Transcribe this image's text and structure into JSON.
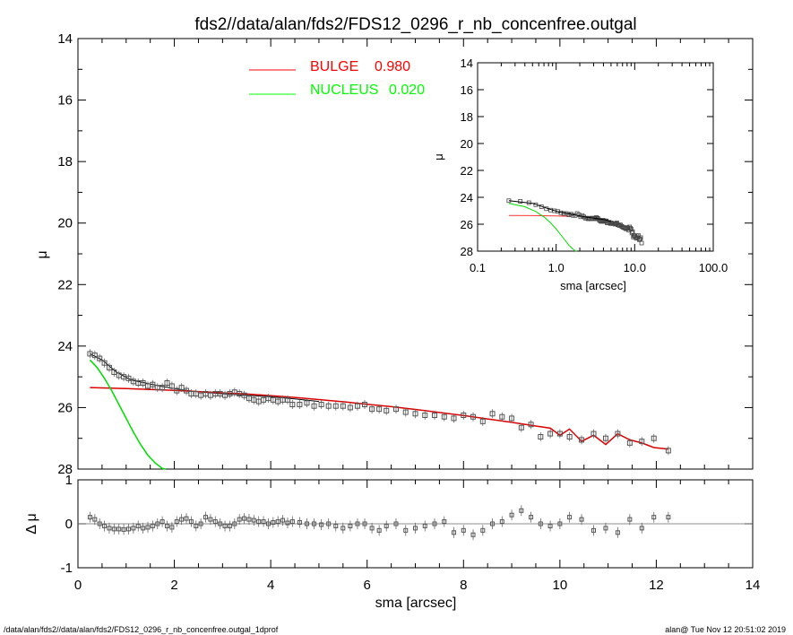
{
  "title": "fds2//data/alan/fds2/FDS12_0296_r_nb_concenfree.outgal",
  "footer_left": "/data/alan/fds2//data/alan/fds2/FDS12_0296_r_nb_concenfree.outgal_1dprof",
  "footer_right": "alan@  Tue Nov 12 20:51:02 2019",
  "colors": {
    "bulge": "#ff0000",
    "nucleus": "#00ff00",
    "bulge_model": "#dd0000",
    "nucleus_model": "#00dd00",
    "axes": "#000000",
    "points": "#555555"
  },
  "chart_data": [
    {
      "id": "main",
      "type": "scatter",
      "title": "fds2//data/alan/fds2/FDS12_0296_r_nb_concenfree.outgal",
      "xlabel": "sma [arcsec]",
      "ylabel": "μ",
      "xlim": [
        0,
        14
      ],
      "ylim": [
        28,
        14
      ],
      "y_inverted": true,
      "xticks": [
        0,
        2,
        4,
        6,
        8,
        10,
        12,
        14
      ],
      "yticks": [
        14,
        16,
        18,
        20,
        22,
        24,
        26,
        28
      ],
      "legend": {
        "placement": "top",
        "entries": [
          {
            "label": "BULGE",
            "value": "0.980",
            "color": "#ff0000"
          },
          {
            "label": "NUCLEUS",
            "value": "0.020",
            "color": "#00ff00"
          }
        ]
      },
      "data_points": {
        "x": [
          0.25,
          0.35,
          0.45,
          0.55,
          0.65,
          0.75,
          0.85,
          0.95,
          1.05,
          1.15,
          1.25,
          1.35,
          1.45,
          1.55,
          1.65,
          1.75,
          1.85,
          1.95,
          2.05,
          2.15,
          2.25,
          2.35,
          2.45,
          2.55,
          2.65,
          2.75,
          2.85,
          2.95,
          3.05,
          3.15,
          3.25,
          3.35,
          3.45,
          3.55,
          3.65,
          3.75,
          3.85,
          3.95,
          4.05,
          4.15,
          4.25,
          4.35,
          4.45,
          4.6,
          4.75,
          4.9,
          5.05,
          5.2,
          5.35,
          5.5,
          5.65,
          5.8,
          5.95,
          6.1,
          6.25,
          6.4,
          6.6,
          6.8,
          7.0,
          7.2,
          7.4,
          7.6,
          7.8,
          8.0,
          8.2,
          8.4,
          8.6,
          8.8,
          9.0,
          9.2,
          9.4,
          9.6,
          9.8,
          10.0,
          10.2,
          10.45,
          10.7,
          10.95,
          11.2,
          11.45,
          11.7,
          11.95,
          12.25
        ],
        "y": [
          24.25,
          24.3,
          24.4,
          24.55,
          24.7,
          24.85,
          24.95,
          25.0,
          25.05,
          25.15,
          25.2,
          25.2,
          25.3,
          25.25,
          25.35,
          25.35,
          25.2,
          25.3,
          25.45,
          25.35,
          25.45,
          25.55,
          25.55,
          25.6,
          25.55,
          25.6,
          25.55,
          25.55,
          25.6,
          25.55,
          25.5,
          25.55,
          25.6,
          25.7,
          25.75,
          25.8,
          25.75,
          25.7,
          25.75,
          25.8,
          25.75,
          25.75,
          25.9,
          25.9,
          25.85,
          25.95,
          25.9,
          25.95,
          25.95,
          25.95,
          26.0,
          25.95,
          25.9,
          26.05,
          26.05,
          26.1,
          26.05,
          26.15,
          26.2,
          26.25,
          26.25,
          26.3,
          26.35,
          26.25,
          26.3,
          26.45,
          26.2,
          26.3,
          26.35,
          26.65,
          26.55,
          26.95,
          26.85,
          26.85,
          26.95,
          27.05,
          26.85,
          27.0,
          26.85,
          27.15,
          27.1,
          27.0,
          27.4
        ],
        "y_approx": true
      },
      "models": {
        "bulge": {
          "x": [
            0.25,
            0.5,
            1.0,
            1.5,
            2.0,
            2.5,
            3.0,
            3.5,
            4.0,
            4.5,
            5.0,
            5.5,
            6.0,
            6.5,
            7.0,
            7.5,
            8.0,
            8.5,
            9.0,
            9.5,
            9.8,
            10.0,
            10.2,
            10.45,
            10.7,
            10.95,
            11.2,
            11.45,
            11.7,
            11.95,
            12.25
          ],
          "y": [
            25.35,
            25.36,
            25.38,
            25.41,
            25.44,
            25.48,
            25.52,
            25.56,
            25.61,
            25.67,
            25.74,
            25.81,
            25.89,
            25.97,
            26.06,
            26.16,
            26.26,
            26.37,
            26.48,
            26.6,
            26.67,
            26.9,
            26.7,
            27.1,
            26.9,
            27.2,
            26.85,
            27.05,
            27.15,
            27.3,
            27.35
          ]
        },
        "nucleus": {
          "x": [
            0.25,
            0.4,
            0.55,
            0.7,
            0.85,
            1.0,
            1.15,
            1.3,
            1.45,
            1.6,
            1.75,
            1.82
          ],
          "y": [
            24.45,
            24.7,
            25.05,
            25.45,
            25.9,
            26.35,
            26.8,
            27.2,
            27.55,
            27.8,
            27.98,
            28.0
          ]
        }
      },
      "total_model": {
        "x": [
          0.25,
          0.5,
          0.8,
          1.1,
          1.4,
          1.7,
          2.0,
          2.3,
          2.6,
          3.0,
          3.5,
          4.0,
          4.5,
          5.0
        ],
        "y": [
          24.25,
          24.45,
          24.85,
          25.1,
          25.2,
          25.3,
          25.38,
          25.45,
          25.5,
          25.55,
          25.6,
          25.65,
          25.72,
          25.8
        ]
      }
    },
    {
      "id": "residuals",
      "type": "scatter",
      "xlabel": "",
      "ylabel": "Δ μ",
      "xlim": [
        0,
        14
      ],
      "ylim": [
        -1,
        1
      ],
      "yticks": [
        -1,
        0,
        1
      ],
      "zero_line": true,
      "x": [
        0.25,
        0.35,
        0.45,
        0.55,
        0.65,
        0.75,
        0.85,
        0.95,
        1.05,
        1.15,
        1.25,
        1.35,
        1.45,
        1.55,
        1.65,
        1.75,
        1.85,
        1.95,
        2.05,
        2.15,
        2.25,
        2.35,
        2.45,
        2.55,
        2.65,
        2.75,
        2.85,
        2.95,
        3.05,
        3.15,
        3.25,
        3.35,
        3.45,
        3.55,
        3.65,
        3.75,
        3.85,
        3.95,
        4.05,
        4.15,
        4.25,
        4.35,
        4.45,
        4.6,
        4.75,
        4.9,
        5.05,
        5.2,
        5.35,
        5.5,
        5.65,
        5.8,
        5.95,
        6.1,
        6.25,
        6.4,
        6.6,
        6.8,
        7.0,
        7.2,
        7.4,
        7.6,
        7.8,
        8.0,
        8.2,
        8.4,
        8.6,
        8.8,
        9.0,
        9.2,
        9.4,
        9.6,
        9.8,
        10.0,
        10.2,
        10.45,
        10.7,
        10.95,
        11.2,
        11.45,
        11.7,
        11.95,
        12.25
      ],
      "y": [
        0.15,
        0.1,
        0.0,
        -0.05,
        -0.1,
        -0.12,
        -0.12,
        -0.13,
        -0.12,
        -0.1,
        -0.05,
        -0.1,
        -0.08,
        -0.05,
        0.0,
        0.05,
        -0.05,
        -0.08,
        0.05,
        0.1,
        0.12,
        0.05,
        -0.05,
        0.0,
        0.15,
        0.1,
        0.05,
        0.0,
        -0.05,
        -0.05,
        0.0,
        0.1,
        0.12,
        0.1,
        0.08,
        0.05,
        0.05,
        0.0,
        0.03,
        0.05,
        0.08,
        0.02,
        0.05,
        0.03,
        0.0,
        0.0,
        -0.02,
        0.0,
        -0.05,
        -0.1,
        -0.05,
        0.0,
        0.0,
        -0.1,
        -0.15,
        -0.05,
        0.0,
        -0.15,
        -0.1,
        -0.05,
        0.0,
        0.05,
        -0.2,
        -0.15,
        -0.25,
        -0.15,
        0.0,
        0.05,
        0.2,
        0.3,
        0.15,
        0.0,
        -0.05,
        0.0,
        0.15,
        0.1,
        -0.15,
        -0.1,
        -0.2,
        0.1,
        -0.1,
        0.15,
        0.15
      ],
      "y_approx": true
    },
    {
      "id": "inset",
      "type": "scatter",
      "xlabel": "sma [arcsec]",
      "ylabel": "μ",
      "x_scale": "log",
      "xlim": [
        0.1,
        100
      ],
      "ylim": [
        28,
        14
      ],
      "y_inverted": true,
      "xtick_labels": [
        "0.1",
        "1.0",
        "10.0",
        "100.0"
      ],
      "yticks": [
        14,
        16,
        18,
        20,
        22,
        24,
        26,
        28
      ]
    }
  ]
}
